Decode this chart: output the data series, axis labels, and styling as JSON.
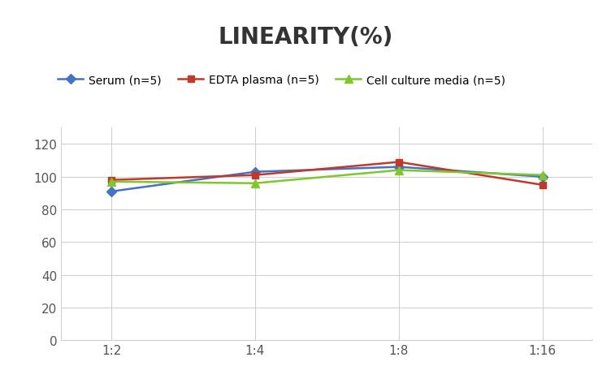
{
  "title": "LINEARITY(%)",
  "x_labels": [
    "1:2",
    "1:4",
    "1:8",
    "1:16"
  ],
  "x_positions": [
    0,
    1,
    2,
    3
  ],
  "series": [
    {
      "label": "Serum (n=5)",
      "values": [
        91,
        103,
        106,
        100
      ],
      "color": "#4472C4",
      "marker": "D",
      "marker_size": 6,
      "linewidth": 1.8
    },
    {
      "label": "EDTA plasma (n=5)",
      "values": [
        98,
        101,
        109,
        95
      ],
      "color": "#C0392B",
      "marker": "s",
      "marker_size": 6,
      "linewidth": 1.8
    },
    {
      "label": "Cell culture media (n=5)",
      "values": [
        97,
        96,
        104,
        101
      ],
      "color": "#7EC82A",
      "marker": "^",
      "marker_size": 7,
      "linewidth": 1.8
    }
  ],
  "ylim": [
    0,
    130
  ],
  "yticks": [
    0,
    20,
    40,
    60,
    80,
    100,
    120
  ],
  "grid_color": "#D0D0D0",
  "background_color": "#FFFFFF",
  "title_fontsize": 20,
  "title_fontweight": "bold",
  "legend_fontsize": 10,
  "tick_fontsize": 11
}
